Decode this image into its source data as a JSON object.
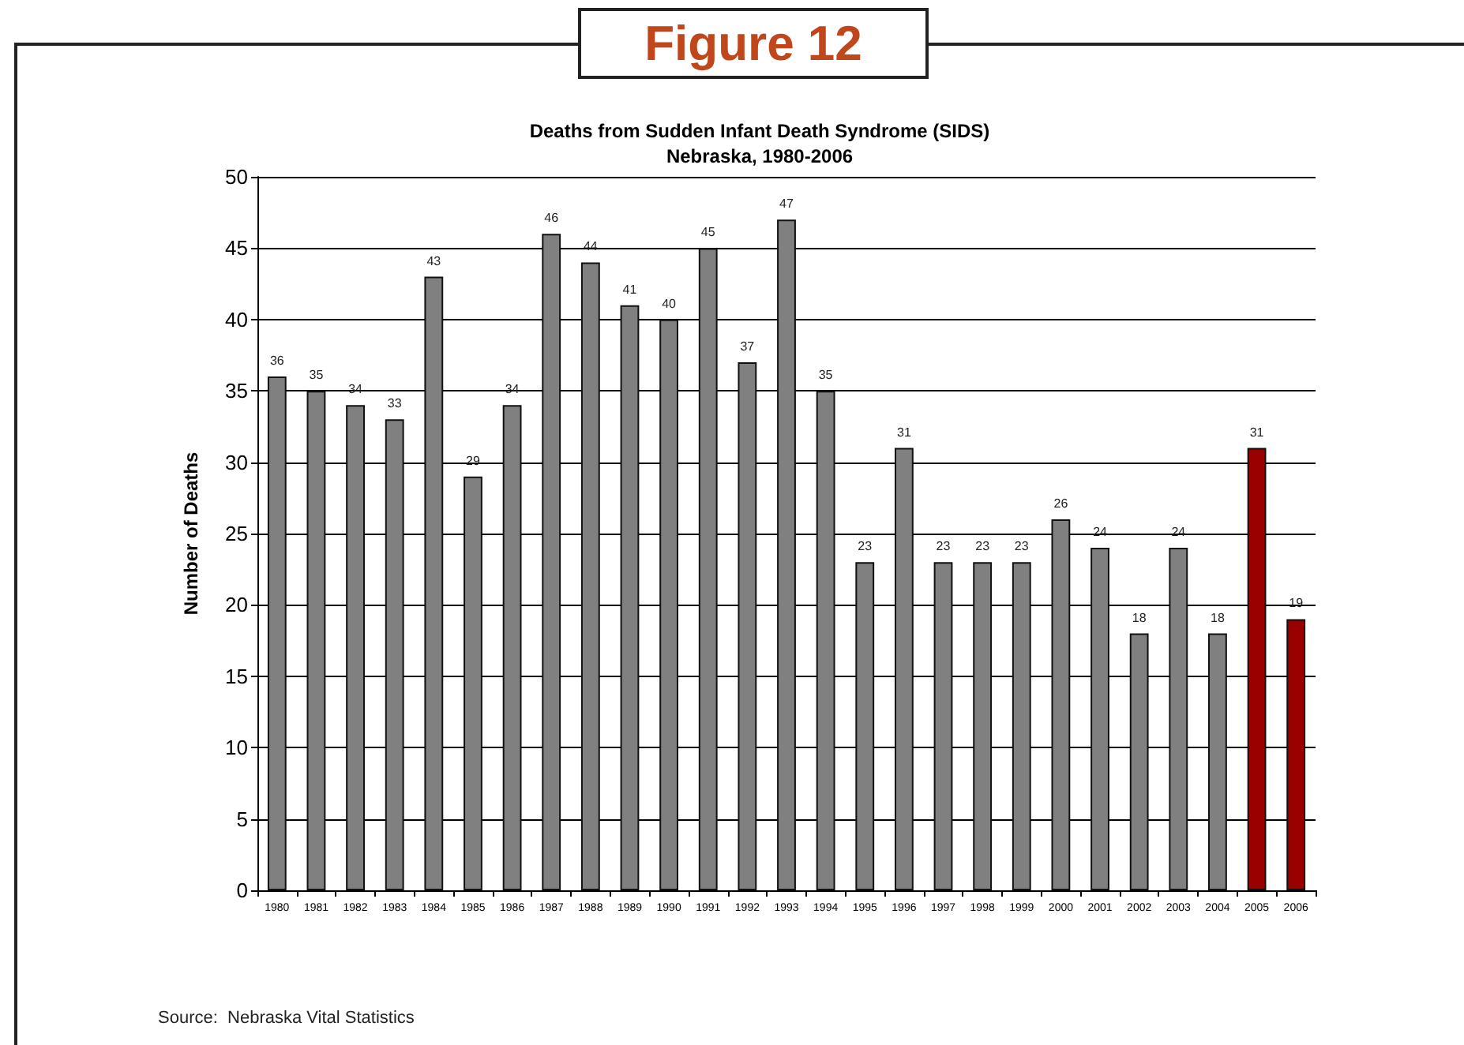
{
  "chart_data": {
    "type": "bar",
    "title": "Deaths from Sudden Infant Death Syndrome (SIDS)",
    "subtitle": "Nebraska, 1980-2006",
    "ylabel": "Number of Deaths",
    "annotations": [
      "Figure 12",
      "Source:  Nebraska Vital Statistics"
    ],
    "categories": [
      "1980",
      "1981",
      "1982",
      "1983",
      "1984",
      "1985",
      "1986",
      "1987",
      "1988",
      "1989",
      "1990",
      "1991",
      "1992",
      "1993",
      "1994",
      "1995",
      "1996",
      "1997",
      "1998",
      "1999",
      "2000",
      "2001",
      "2002",
      "2003",
      "2004",
      "2005",
      "2006"
    ],
    "values": [
      36,
      35,
      34,
      33,
      43,
      29,
      34,
      46,
      44,
      41,
      40,
      45,
      37,
      47,
      35,
      23,
      31,
      23,
      23,
      23,
      26,
      24,
      18,
      24,
      18,
      31,
      19
    ],
    "colors": [
      "#808080",
      "#808080",
      "#808080",
      "#808080",
      "#808080",
      "#808080",
      "#808080",
      "#808080",
      "#808080",
      "#808080",
      "#808080",
      "#808080",
      "#808080",
      "#808080",
      "#808080",
      "#808080",
      "#808080",
      "#808080",
      "#808080",
      "#808080",
      "#808080",
      "#808080",
      "#808080",
      "#808080",
      "#808080",
      "#990000",
      "#990000"
    ],
    "ylim": [
      0,
      50
    ],
    "yticks": [
      0,
      5,
      10,
      15,
      20,
      25,
      30,
      35,
      40,
      45,
      50
    ],
    "grid": "y",
    "data_labels": true
  }
}
